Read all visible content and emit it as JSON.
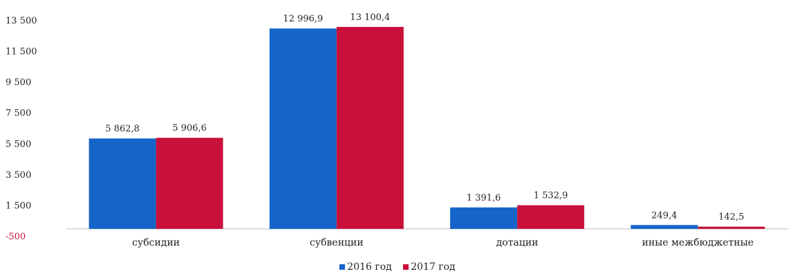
{
  "chart_data": {
    "type": "bar",
    "title": "",
    "xlabel": "",
    "ylabel": "",
    "categories": [
      "субсидии",
      "субвенции",
      "дотации",
      "иные межбюджетные"
    ],
    "series": [
      {
        "name": "2016 год",
        "color": "#1565c8",
        "values": [
          5862.8,
          12996.9,
          1391.6,
          249.4
        ],
        "labels": [
          "5 862,8",
          "12 996,9",
          "1 391,6",
          "249,4"
        ]
      },
      {
        "name": "2017 год",
        "color": "#c8103a",
        "values": [
          5906.6,
          13100.4,
          1532.9,
          142.5
        ],
        "labels": [
          "5 906,6",
          "13 100,4",
          "1 532,9",
          "142,5"
        ]
      }
    ],
    "ylim": [
      -500,
      13500
    ],
    "yticks": [
      -500,
      1500,
      3500,
      5500,
      7500,
      9500,
      11500,
      13500
    ],
    "ytick_labels": [
      "-500",
      "1 500",
      "3 500",
      "5 500",
      "7 500",
      "9 500",
      "11 500",
      "13 500"
    ],
    "grid": false,
    "legend": "bottom"
  }
}
